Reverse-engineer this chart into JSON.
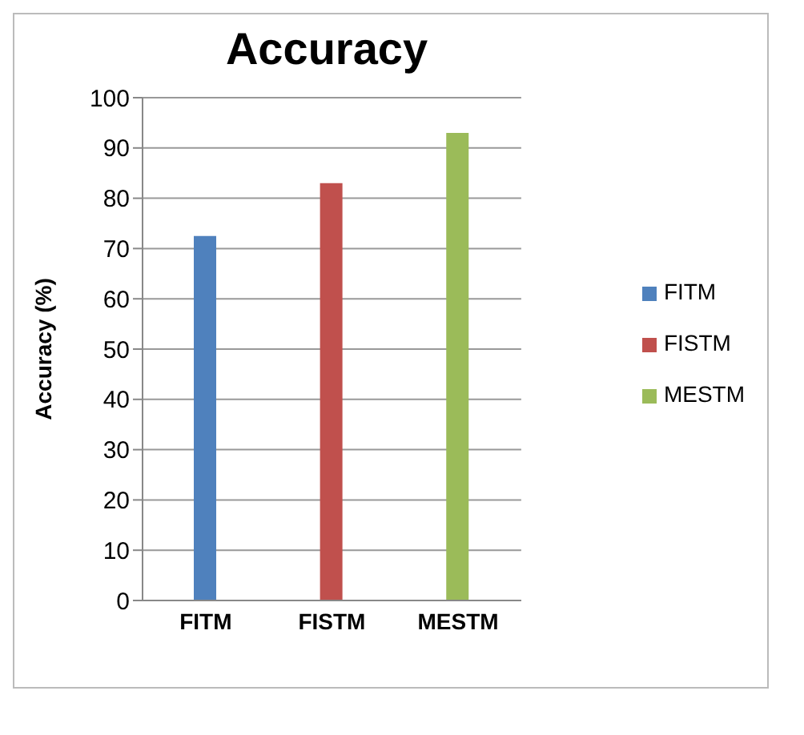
{
  "chart_data": {
    "type": "bar",
    "title": "Accuracy",
    "ylabel": "Accuracy  (%)",
    "categories": [
      "FITM",
      "FISTM",
      "MESTM"
    ],
    "series": [
      {
        "name": "FITM",
        "color": "#4f81bd",
        "values": [
          72.5,
          null,
          null
        ]
      },
      {
        "name": "FISTM",
        "color": "#c0504d",
        "values": [
          null,
          83,
          null
        ]
      },
      {
        "name": "MESTM",
        "color": "#9bbb59",
        "values": [
          null,
          null,
          93
        ]
      }
    ],
    "stacked": true,
    "ylim": [
      0,
      100
    ],
    "yticks": [
      0,
      10,
      20,
      30,
      40,
      50,
      60,
      70,
      80,
      90,
      100
    ],
    "grid": "y",
    "legend": "right"
  }
}
